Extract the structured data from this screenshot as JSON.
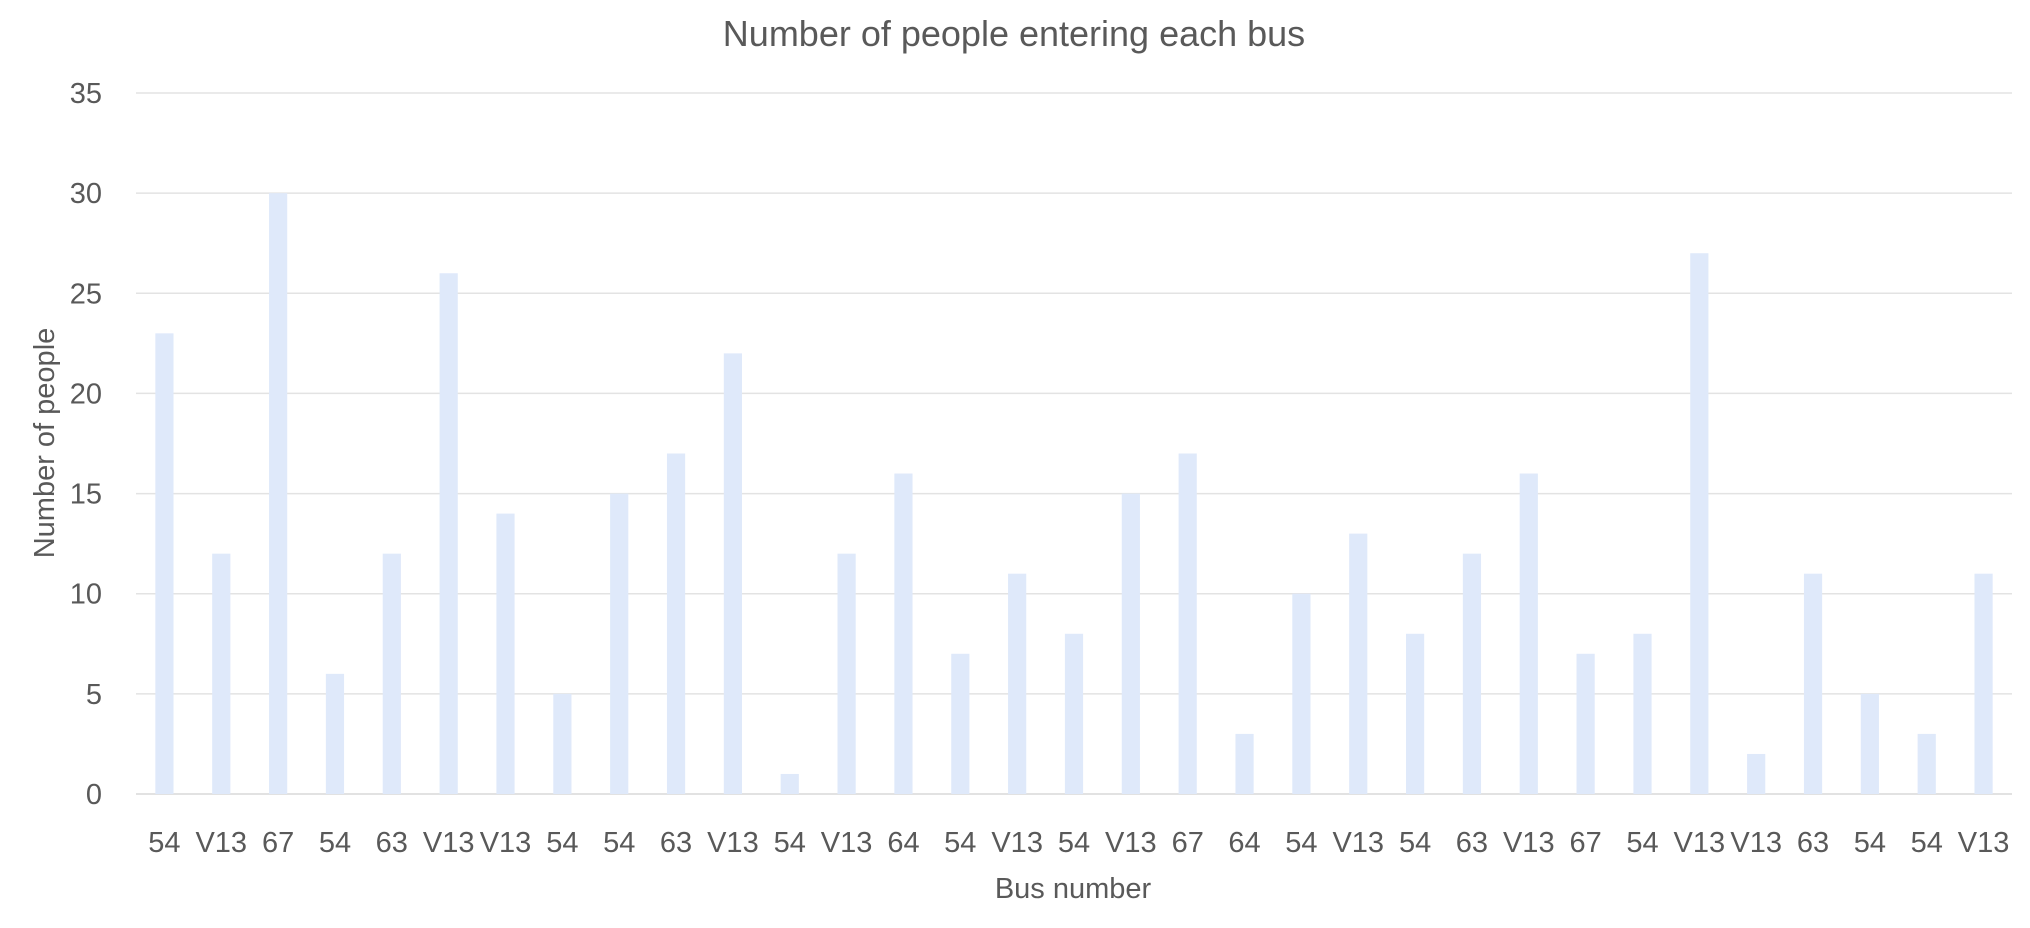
{
  "chart_data": {
    "type": "bar",
    "title": "Number of people entering each bus",
    "xlabel": "Bus number",
    "ylabel": "Number of people",
    "ylim": [
      0,
      35
    ],
    "yticks": [
      0,
      5,
      10,
      15,
      20,
      25,
      30,
      35
    ],
    "grid": true,
    "legend": "none",
    "bar_color": "#dfe9fa",
    "categories": [
      "54",
      "V13",
      "67",
      "54",
      "63",
      "V13",
      "V13",
      "54",
      "54",
      "63",
      "V13",
      "54",
      "V13",
      "64",
      "54",
      "V13",
      "54",
      "V13",
      "67",
      "64",
      "54",
      "V13",
      "54",
      "63",
      "V13",
      "67",
      "54",
      "V13",
      "V13",
      "63",
      "54",
      "54",
      "V13"
    ],
    "values": [
      23,
      12,
      30,
      6,
      12,
      26,
      14,
      5,
      15,
      17,
      22,
      1,
      12,
      16,
      7,
      11,
      8,
      15,
      17,
      3,
      10,
      13,
      8,
      12,
      16,
      7,
      8,
      27,
      2,
      11,
      5,
      3,
      11
    ]
  }
}
